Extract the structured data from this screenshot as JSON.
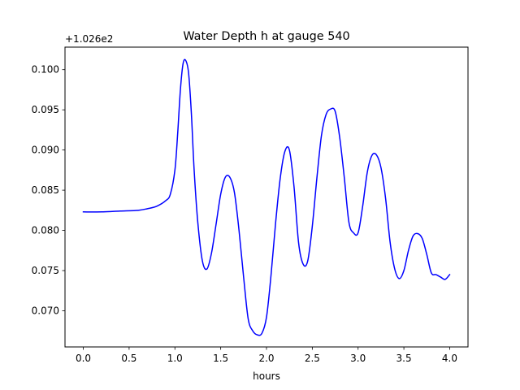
{
  "chart_data": {
    "type": "line",
    "title": "Water Depth h at gauge 540",
    "xlabel": "hours",
    "ylabel": "",
    "y_offset_label": "+1.026e2",
    "xlim": [
      -0.2,
      4.2
    ],
    "ylim": [
      0.0655,
      0.1028
    ],
    "xticks": [
      0.0,
      0.5,
      1.0,
      1.5,
      2.0,
      2.5,
      3.0,
      3.5,
      4.0
    ],
    "xtick_labels": [
      "0.0",
      "0.5",
      "1.0",
      "1.5",
      "2.0",
      "2.5",
      "3.0",
      "3.5",
      "4.0"
    ],
    "yticks": [
      0.07,
      0.075,
      0.08,
      0.085,
      0.09,
      0.095,
      0.1
    ],
    "ytick_labels": [
      "0.070",
      "0.075",
      "0.080",
      "0.085",
      "0.090",
      "0.095",
      "0.100"
    ],
    "grid": false,
    "series": [
      {
        "color": "#0000ff",
        "x": [
          0.0,
          0.2,
          0.4,
          0.6,
          0.7,
          0.8,
          0.9,
          0.95,
          1.0,
          1.03,
          1.06,
          1.09,
          1.12,
          1.15,
          1.18,
          1.21,
          1.25,
          1.3,
          1.35,
          1.4,
          1.45,
          1.5,
          1.55,
          1.6,
          1.65,
          1.7,
          1.75,
          1.8,
          1.85,
          1.9,
          1.95,
          2.0,
          2.05,
          2.1,
          2.15,
          2.2,
          2.25,
          2.3,
          2.35,
          2.4,
          2.45,
          2.5,
          2.55,
          2.6,
          2.65,
          2.7,
          2.75,
          2.8,
          2.85,
          2.9,
          2.95,
          3.0,
          3.05,
          3.1,
          3.15,
          3.2,
          3.25,
          3.3,
          3.35,
          3.4,
          3.45,
          3.5,
          3.55,
          3.6,
          3.65,
          3.7,
          3.75,
          3.8,
          3.85,
          3.9,
          3.95,
          4.0
        ],
        "y": [
          0.0823,
          0.0823,
          0.0824,
          0.0825,
          0.0827,
          0.083,
          0.0837,
          0.0845,
          0.0875,
          0.092,
          0.0975,
          0.1008,
          0.1011,
          0.0995,
          0.0945,
          0.0875,
          0.081,
          0.0762,
          0.0752,
          0.0772,
          0.0808,
          0.0845,
          0.0866,
          0.0866,
          0.0847,
          0.08,
          0.0742,
          0.069,
          0.0675,
          0.067,
          0.0672,
          0.0692,
          0.0745,
          0.081,
          0.0865,
          0.0898,
          0.09,
          0.0855,
          0.0785,
          0.0758,
          0.0762,
          0.0805,
          0.0865,
          0.0918,
          0.0944,
          0.0951,
          0.0948,
          0.0915,
          0.0865,
          0.081,
          0.0797,
          0.0797,
          0.083,
          0.0872,
          0.0893,
          0.0894,
          0.0878,
          0.084,
          0.0785,
          0.0752,
          0.074,
          0.075,
          0.0775,
          0.0793,
          0.0796,
          0.079,
          0.077,
          0.0747,
          0.0745,
          0.0742,
          0.0739,
          0.0745
        ]
      }
    ]
  }
}
